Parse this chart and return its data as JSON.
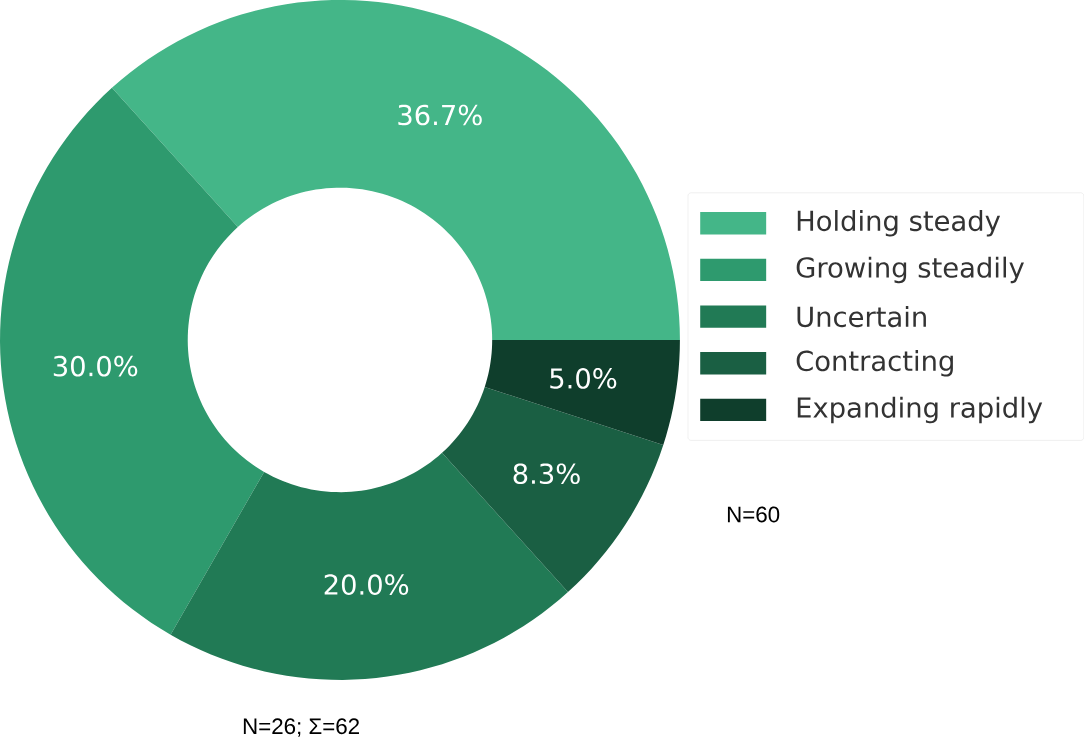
{
  "chart_data": {
    "type": "donut",
    "categories": [
      "Holding steady",
      "Growing steadily",
      "Uncertain",
      "Contracting",
      "Expanding rapidly"
    ],
    "values": [
      36.7,
      30.0,
      20.0,
      8.3,
      5.0
    ],
    "value_labels": [
      "36.7%",
      "30.0%",
      "20.0%",
      "8.3%",
      "5.0%"
    ],
    "colors": [
      "#44b688",
      "#2e9a6e",
      "#217a55",
      "#1a5f43",
      "#0f3e2c"
    ],
    "legend": "right",
    "annotations": [
      "N=60",
      "N=26; Σ=62"
    ]
  }
}
